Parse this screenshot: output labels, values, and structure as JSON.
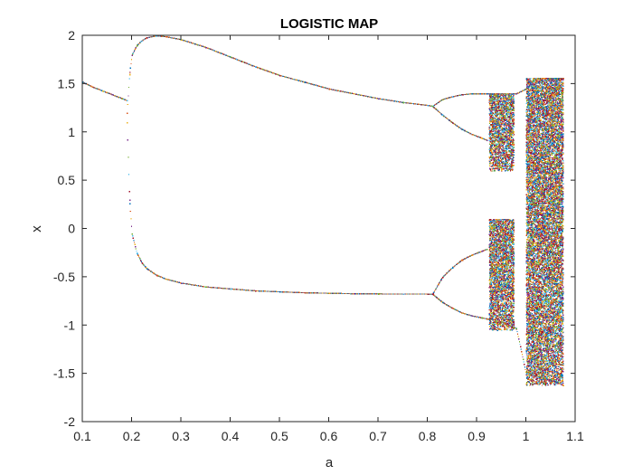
{
  "chart_data": {
    "type": "scatter",
    "title": "LOGISTIC MAP",
    "xlabel": "a",
    "ylabel": "x",
    "xlim": [
      0.1,
      1.1
    ],
    "ylim": [
      -2,
      2
    ],
    "xticks": [
      0.1,
      0.2,
      0.3,
      0.4,
      0.5,
      0.6,
      0.7,
      0.8,
      0.9,
      1,
      1.1
    ],
    "xtick_labels": [
      "0.1",
      "0.2",
      "0.3",
      "0.4",
      "0.5",
      "0.6",
      "0.7",
      "0.8",
      "0.9",
      "1",
      "1.1"
    ],
    "yticks": [
      2,
      1.5,
      1,
      0.5,
      0,
      -0.5,
      -1,
      -1.5,
      -2
    ],
    "ytick_labels": [
      "2",
      "1.5",
      "1",
      "0.5",
      "0",
      "-0.5",
      "-1",
      "-1.5",
      "-2"
    ],
    "grid": false,
    "legend": false,
    "colors": [
      "#0072BD",
      "#D95319",
      "#EDB120",
      "#7E2F8E",
      "#77AC30",
      "#4DBEEE",
      "#A2142F"
    ],
    "series": [
      {
        "x": [
          0.1,
          0.12,
          0.14,
          0.16,
          0.18,
          0.19
        ],
        "y": [
          1.52,
          1.47,
          1.43,
          1.39,
          1.35,
          1.33
        ]
      },
      {
        "x": [
          0.19,
          0.195,
          0.2,
          0.21,
          0.22,
          0.23,
          0.25,
          0.27,
          0.3,
          0.35,
          0.4,
          0.45,
          0.5,
          0.55,
          0.6,
          0.65,
          0.7,
          0.75,
          0.8,
          0.81
        ],
        "y": [
          1.2,
          1.6,
          1.8,
          1.9,
          1.95,
          1.98,
          2.0,
          1.99,
          1.96,
          1.88,
          1.78,
          1.68,
          1.59,
          1.52,
          1.45,
          1.4,
          1.35,
          1.31,
          1.28,
          1.27
        ]
      },
      {
        "x": [
          0.19,
          0.195,
          0.2,
          0.21,
          0.22,
          0.23,
          0.25,
          0.27,
          0.3,
          0.35,
          0.4,
          0.45,
          0.5,
          0.55,
          0.6,
          0.65,
          0.7,
          0.75,
          0.8,
          0.81
        ],
        "y": [
          1.1,
          0.3,
          -0.05,
          -0.25,
          -0.35,
          -0.41,
          -0.48,
          -0.52,
          -0.56,
          -0.6,
          -0.62,
          -0.64,
          -0.65,
          -0.66,
          -0.665,
          -0.67,
          -0.672,
          -0.673,
          -0.674,
          -0.675
        ]
      },
      {
        "x": [
          0.81,
          0.83,
          0.85,
          0.87,
          0.89,
          0.91,
          0.92
        ],
        "y": [
          1.27,
          1.34,
          1.37,
          1.39,
          1.4,
          1.4,
          1.4
        ]
      },
      {
        "x": [
          0.81,
          0.83,
          0.85,
          0.87,
          0.89,
          0.91,
          0.92
        ],
        "y": [
          1.27,
          1.18,
          1.1,
          1.03,
          0.98,
          0.94,
          0.92
        ]
      },
      {
        "x": [
          0.81,
          0.83,
          0.85,
          0.87,
          0.89,
          0.91,
          0.92
        ],
        "y": [
          -0.675,
          -0.5,
          -0.4,
          -0.32,
          -0.27,
          -0.23,
          -0.21
        ]
      },
      {
        "x": [
          0.81,
          0.83,
          0.85,
          0.87,
          0.89,
          0.91,
          0.92
        ],
        "y": [
          -0.675,
          -0.76,
          -0.82,
          -0.87,
          -0.9,
          -0.92,
          -0.93
        ]
      },
      {
        "x": [
          0.92,
          0.94,
          0.96,
          0.98,
          1.0,
          1.02,
          1.04,
          1.06,
          1.075
        ],
        "y": [
          1.4,
          1.4,
          1.4,
          1.4,
          1.45,
          1.56,
          1.56,
          1.56,
          1.56
        ]
      },
      {
        "x": [
          0.92,
          0.94,
          0.96,
          0.98,
          1.0,
          1.02,
          1.04,
          1.06,
          1.075
        ],
        "y": [
          -0.93,
          -0.95,
          -0.98,
          -1.03,
          -1.5,
          -1.52,
          -1.55,
          -1.58,
          -1.62
        ]
      }
    ],
    "chaotic_bands": [
      {
        "x": [
          0.925,
          0.975
        ],
        "y": [
          0.6,
          1.4
        ]
      },
      {
        "x": [
          0.925,
          0.975
        ],
        "y": [
          -1.05,
          0.1
        ]
      },
      {
        "x": [
          1.0,
          1.075
        ],
        "y": [
          -1.62,
          1.56
        ]
      }
    ]
  }
}
